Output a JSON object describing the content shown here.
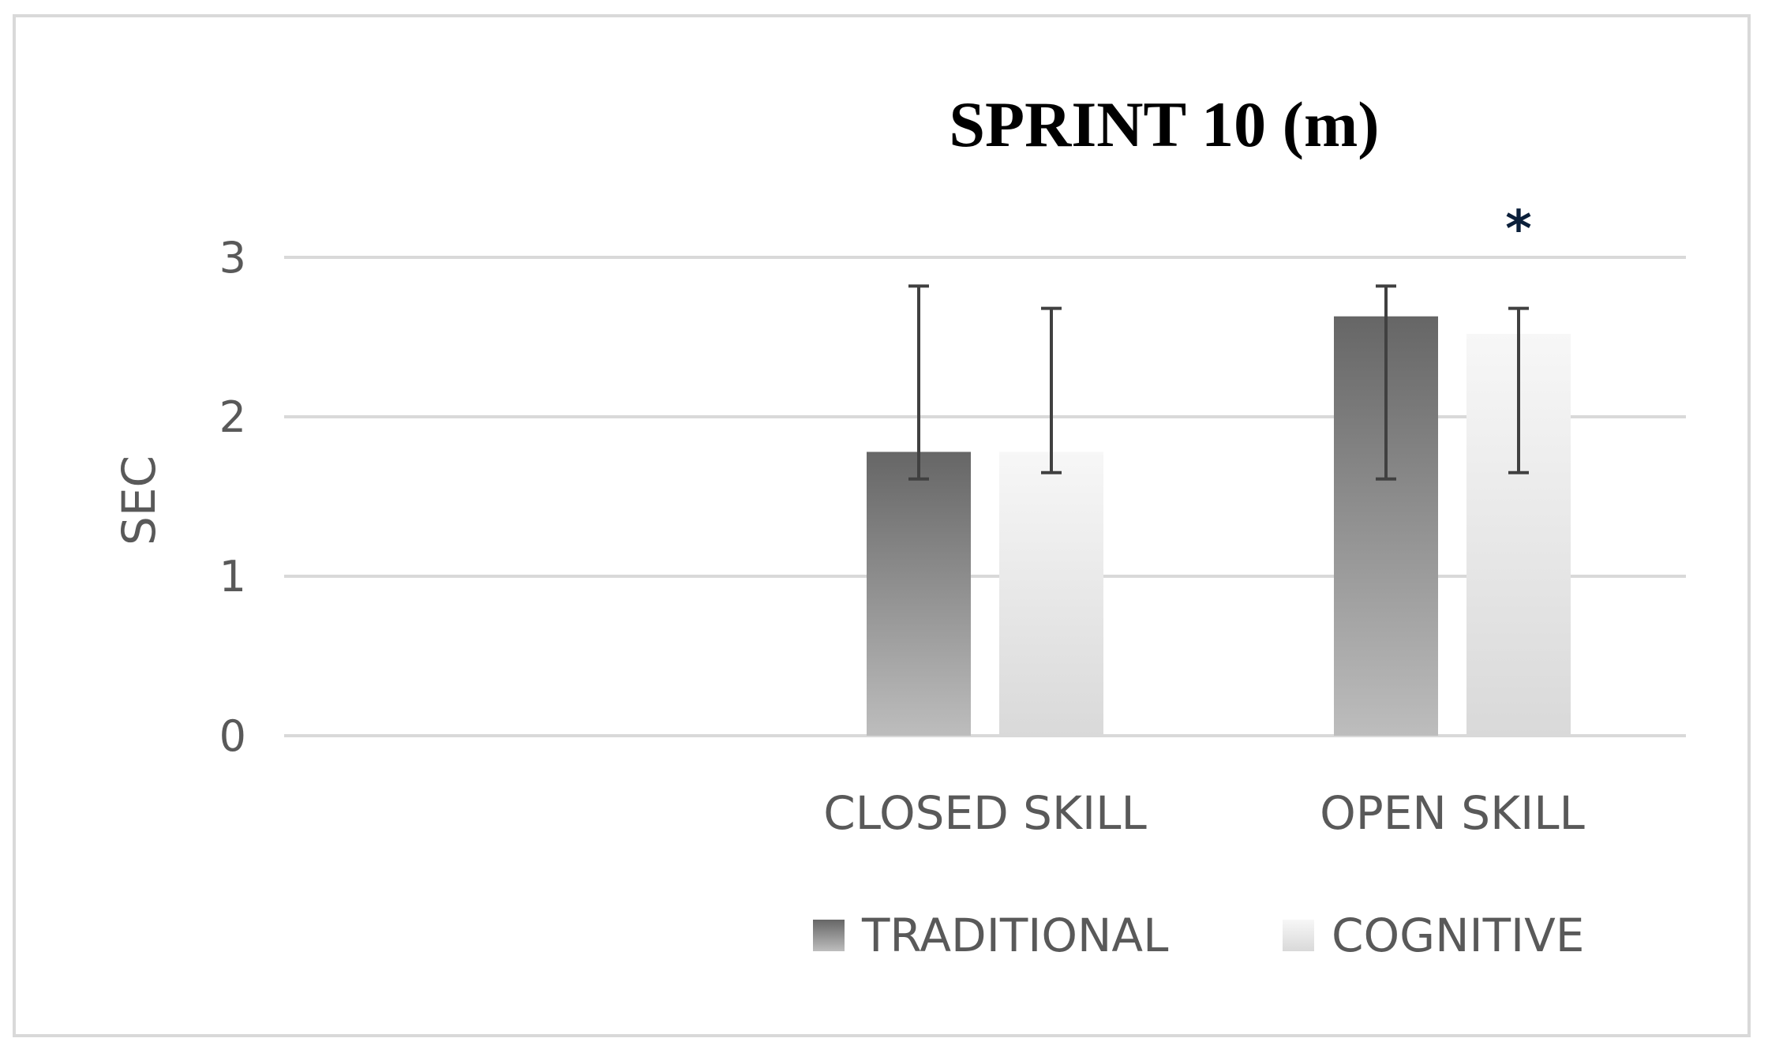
{
  "chart_data": {
    "type": "bar",
    "title": "SPRINT 10 (m)",
    "ylabel": "SEC",
    "xlabel": "",
    "ylim": [
      0,
      3
    ],
    "yticks": [
      0,
      1,
      2,
      3
    ],
    "grid": true,
    "legend_position": "bottom",
    "categories": [
      "",
      "CLOSED SKILL",
      "OPEN SKILL"
    ],
    "series": [
      {
        "name": "TRADITIONAL",
        "values": [
          null,
          1.78,
          2.63
        ],
        "error_low": [
          null,
          1.61,
          1.61
        ],
        "error_high": [
          null,
          2.82,
          2.82
        ],
        "color_top": "#666666",
        "color_bottom": "#bdbdbd"
      },
      {
        "name": "COGNITIVE",
        "values": [
          null,
          1.78,
          2.52
        ],
        "error_low": [
          null,
          1.65,
          1.65
        ],
        "error_high": [
          null,
          2.68,
          2.68
        ],
        "color_top": "#f7f7f7",
        "color_bottom": "#d9d9d9"
      }
    ],
    "annotations": [
      {
        "text": "*",
        "category": "OPEN SKILL",
        "series": "COGNITIVE"
      }
    ]
  }
}
